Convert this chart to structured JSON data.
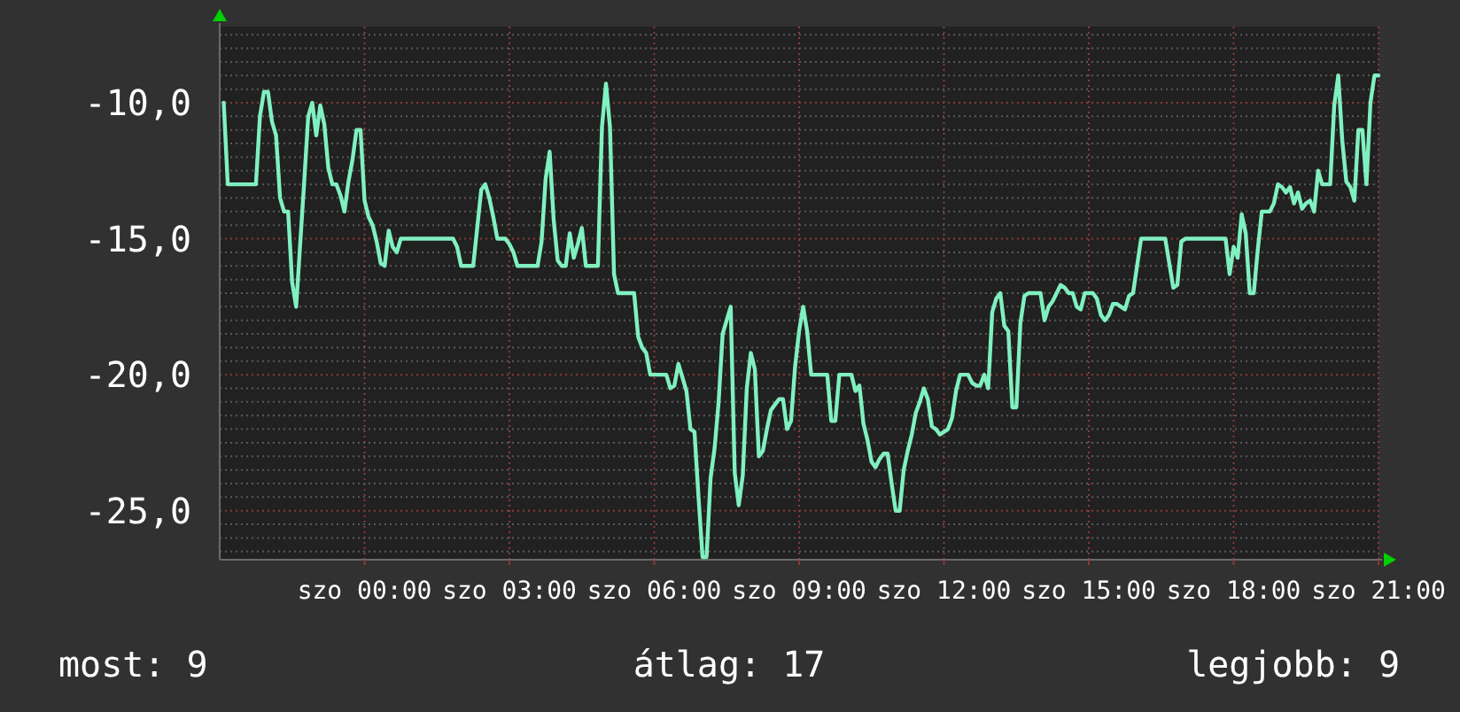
{
  "chart_data": {
    "type": "line",
    "categories": [
      null,
      null,
      null,
      null,
      null,
      null,
      null,
      null,
      null,
      null,
      null,
      null,
      null,
      null,
      null,
      null,
      null,
      null,
      null,
      null,
      null,
      null,
      null,
      null,
      null,
      null,
      null,
      null,
      null,
      null,
      null,
      null,
      null,
      null,
      null,
      null,
      "szo 00:00",
      null,
      null,
      null,
      null,
      null,
      null,
      null,
      null,
      null,
      null,
      null,
      null,
      null,
      null,
      null,
      null,
      null,
      null,
      null,
      null,
      null,
      null,
      null,
      null,
      null,
      null,
      null,
      null,
      null,
      null,
      null,
      null,
      null,
      null,
      null,
      "szo 03:00",
      null,
      null,
      null,
      null,
      null,
      null,
      null,
      null,
      null,
      null,
      null,
      null,
      null,
      null,
      null,
      null,
      null,
      null,
      null,
      null,
      null,
      null,
      null,
      null,
      null,
      null,
      null,
      null,
      null,
      null,
      null,
      null,
      null,
      null,
      null,
      "szo 06:00",
      null,
      null,
      null,
      null,
      null,
      null,
      null,
      null,
      null,
      null,
      null,
      null,
      null,
      null,
      null,
      null,
      null,
      null,
      null,
      null,
      null,
      null,
      null,
      null,
      null,
      null,
      null,
      null,
      null,
      null,
      null,
      null,
      null,
      null,
      null,
      "szo 09:00",
      null,
      null,
      null,
      null,
      null,
      null,
      null,
      null,
      null,
      null,
      null,
      null,
      null,
      null,
      null,
      null,
      null,
      null,
      null,
      null,
      null,
      null,
      null,
      null,
      null,
      null,
      null,
      null,
      null,
      null,
      null,
      null,
      null,
      null,
      null,
      "szo 12:00",
      null,
      null,
      null,
      null,
      null,
      null,
      null,
      null,
      null,
      null,
      null,
      null,
      null,
      null,
      null,
      null,
      null,
      null,
      null,
      null,
      null,
      null,
      null,
      null,
      null,
      null,
      null,
      null,
      null,
      null,
      null,
      null,
      null,
      null,
      null,
      "szo 15:00",
      null,
      null,
      null,
      null,
      null,
      null,
      null,
      null,
      null,
      null,
      null,
      null,
      null,
      null,
      null,
      null,
      null,
      null,
      null,
      null,
      null,
      null,
      null,
      null,
      null,
      null,
      null,
      null,
      null,
      null,
      null,
      null,
      null,
      null,
      null,
      "szo 18:00",
      null,
      null,
      null,
      null,
      null,
      null,
      null,
      null,
      null,
      null,
      null,
      null,
      null,
      null,
      null,
      null,
      null,
      null,
      null,
      null,
      null,
      null,
      null,
      null,
      null,
      null,
      null,
      null,
      null,
      null,
      null,
      null,
      null,
      null,
      null,
      "szo 21:00"
    ],
    "ylim": [
      -26.8,
      -7.2
    ],
    "yticks": [
      {
        "value": -26.5,
        "label": null
      },
      {
        "value": -26,
        "label": null
      },
      {
        "value": -25.5,
        "label": null
      },
      {
        "value": -25,
        "label": "-25,0"
      },
      {
        "value": -24.5,
        "label": null
      },
      {
        "value": -24,
        "label": null
      },
      {
        "value": -23.5,
        "label": null
      },
      {
        "value": -23,
        "label": null
      },
      {
        "value": -22.5,
        "label": null
      },
      {
        "value": -22,
        "label": null
      },
      {
        "value": -21.5,
        "label": null
      },
      {
        "value": -21,
        "label": null
      },
      {
        "value": -20.5,
        "label": null
      },
      {
        "value": -20,
        "label": "-20,0"
      },
      {
        "value": -19.5,
        "label": null
      },
      {
        "value": -19,
        "label": null
      },
      {
        "value": -18.5,
        "label": null
      },
      {
        "value": -18,
        "label": null
      },
      {
        "value": -17.5,
        "label": null
      },
      {
        "value": -17,
        "label": null
      },
      {
        "value": -16.5,
        "label": null
      },
      {
        "value": -16,
        "label": null
      },
      {
        "value": -15.5,
        "label": null
      },
      {
        "value": -15,
        "label": "-15,0"
      },
      {
        "value": -14.5,
        "label": null
      },
      {
        "value": -14,
        "label": null
      },
      {
        "value": -13.5,
        "label": null
      },
      {
        "value": -13,
        "label": null
      },
      {
        "value": -12.5,
        "label": null
      },
      {
        "value": -12,
        "label": null
      },
      {
        "value": -11.5,
        "label": null
      },
      {
        "value": -11,
        "label": null
      },
      {
        "value": -10.5,
        "label": null
      },
      {
        "value": -10,
        "label": "-10,0"
      },
      {
        "value": -9.5,
        "label": null
      },
      {
        "value": -9,
        "label": null
      },
      {
        "value": -8.5,
        "label": null
      },
      {
        "value": -8,
        "label": null
      },
      {
        "value": -7.5,
        "label": null
      }
    ],
    "grid": true,
    "series": [
      {
        "color": "#80f0c0",
        "values": [
          null,
          -10,
          -13,
          -13,
          -13,
          -13,
          -13,
          -13,
          -13,
          -13,
          -10.5,
          -9.6,
          -9.6,
          -10.7,
          -11.2,
          -13.5,
          -14,
          -14,
          -16.6,
          -17.5,
          -15.2,
          -12.9,
          -10.5,
          -10,
          -11.2,
          -10.1,
          -10.8,
          -12.4,
          -13,
          -13,
          -13.4,
          -14,
          -12.9,
          -12.1,
          -11,
          -11,
          -13.6,
          -14.2,
          -14.5,
          -15.1,
          -15.9,
          -16,
          -14.7,
          -15.3,
          -15.5,
          -15,
          -15,
          -15,
          -15,
          -15,
          -15,
          -15,
          -15,
          -15,
          -15,
          -15,
          -15,
          -15,
          -15,
          -15.3,
          -16,
          -16,
          -16,
          -16,
          -14.6,
          -13.2,
          -13,
          -13.5,
          -14.2,
          -15,
          -15,
          -15,
          -15.2,
          -15.5,
          -16,
          -16,
          -16,
          -16,
          -16,
          -16,
          -15.1,
          -12.8,
          -11.8,
          -14.3,
          -15.8,
          -16,
          -16,
          -14.8,
          -15.7,
          -15.2,
          -14.6,
          -16,
          -16,
          -16,
          -16,
          -10.9,
          -9.3,
          -10.9,
          -16.3,
          -17,
          -17,
          -17,
          -17,
          -17,
          -18.6,
          -19,
          -19.2,
          -20,
          -20,
          -20,
          -20,
          -20,
          -20.5,
          -20.4,
          -19.6,
          -20.1,
          -20.6,
          -22,
          -22.1,
          -24.5,
          -26.7,
          -26.7,
          -23.8,
          -22.7,
          -21,
          -18.5,
          -18,
          -17.5,
          -23.6,
          -24.8,
          -23.7,
          -20.5,
          -19.2,
          -19.8,
          -23,
          -22.8,
          -22,
          -21.3,
          -21.1,
          -20.9,
          -20.9,
          -22,
          -21.7,
          -19.7,
          -18.4,
          -17.5,
          -18.4,
          -20,
          -20,
          -20,
          -20,
          -20,
          -21.7,
          -21.7,
          -20,
          -20,
          -20,
          -20,
          -20.6,
          -20.4,
          -21.8,
          -22.4,
          -23.2,
          -23.4,
          -23.1,
          -22.9,
          -22.9,
          -24,
          -25,
          -25,
          -23.5,
          -22.8,
          -22.2,
          -21.4,
          -21,
          -20.5,
          -20.9,
          -21.9,
          -22,
          -22.2,
          -22.1,
          -22,
          -21.6,
          -20.6,
          -20,
          -20,
          -20,
          -20.3,
          -20.4,
          -20.4,
          -20,
          -20.5,
          -17.7,
          -17.2,
          -17,
          -18.2,
          -18.4,
          -21.2,
          -21.2,
          -18.1,
          -17.1,
          -17,
          -17,
          -17,
          -17,
          -18,
          -17.5,
          -17.3,
          -17,
          -16.7,
          -16.8,
          -17,
          -17,
          -17.5,
          -17.6,
          -17,
          -17,
          -17,
          -17.2,
          -17.8,
          -18,
          -17.8,
          -17.4,
          -17.4,
          -17.5,
          -17.6,
          -17.1,
          -17,
          -16,
          -15,
          -15,
          -15,
          -15,
          -15,
          -15,
          -15,
          -15.9,
          -16.8,
          -16.7,
          -15.1,
          -15,
          -15,
          -15,
          -15,
          -15,
          -15,
          -15,
          -15,
          -15,
          -15,
          -15,
          -16.3,
          -15.3,
          -15.7,
          -14.1,
          -14.8,
          -17,
          -17,
          -15.4,
          -14,
          -14,
          -14,
          -13.7,
          -13,
          -13.1,
          -13.3,
          -13.1,
          -13.7,
          -13.3,
          -13.9,
          -13.7,
          -13.6,
          -14,
          -12.5,
          -13,
          -13,
          -13,
          -10.1,
          -9,
          -11.4,
          -12.9,
          -13.1,
          -13.6,
          -11,
          -11,
          -13,
          -10,
          -9,
          -9
        ]
      }
    ],
    "annotations": [
      "most: 9",
      "átlag: 17",
      "legjobb: 9"
    ]
  }
}
